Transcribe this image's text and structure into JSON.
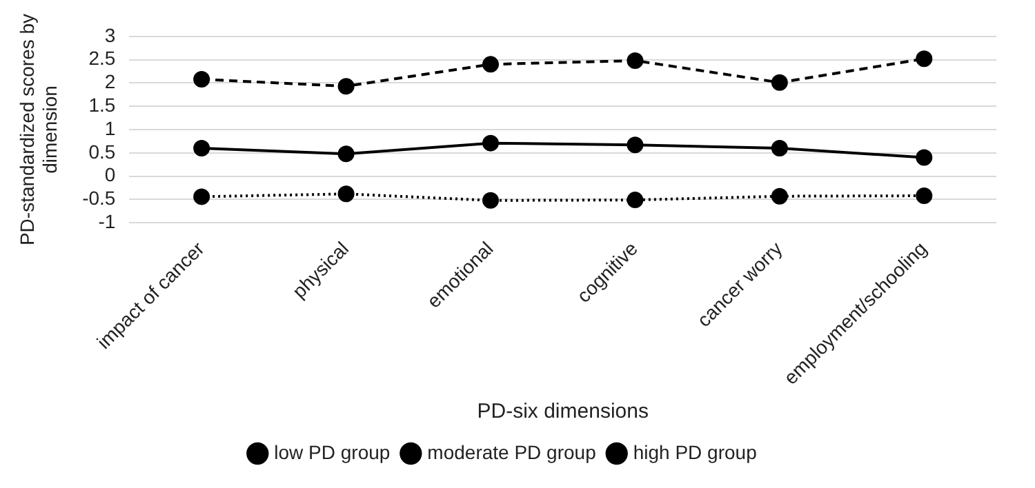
{
  "chart_data": {
    "type": "line",
    "xlabel": "PD-six dimensions",
    "ylabel": "PD-standardized scores by dimension",
    "categories": [
      "impact of cancer",
      "physical",
      "emotional",
      "cognitive",
      "cancer worry",
      "employment/schooling"
    ],
    "series": [
      {
        "name": "low PD group",
        "color": "#000000",
        "line_style": "dotted",
        "values": [
          -0.44,
          -0.38,
          -0.52,
          -0.51,
          -0.43,
          -0.42
        ]
      },
      {
        "name": "moderate PD group",
        "color": "#000000",
        "line_style": "solid",
        "values": [
          0.6,
          0.48,
          0.71,
          0.67,
          0.6,
          0.4
        ]
      },
      {
        "name": "high PD group",
        "color": "#000000",
        "line_style": "dashed",
        "values": [
          2.08,
          1.93,
          2.4,
          2.48,
          2.01,
          2.52
        ]
      }
    ],
    "ylim": [
      -1,
      3
    ],
    "yticks": [
      -1,
      -0.5,
      0,
      0.5,
      1,
      1.5,
      2,
      2.5,
      3
    ],
    "grid": "y",
    "legend": "bottom",
    "marker": "circle"
  }
}
